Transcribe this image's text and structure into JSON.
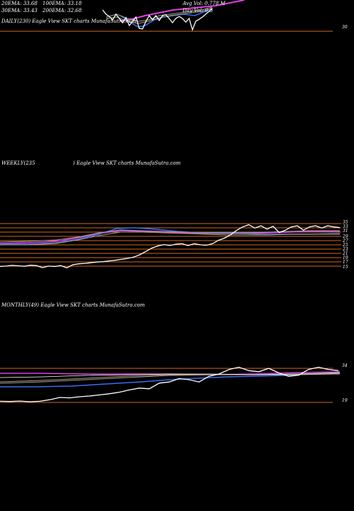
{
  "colors": {
    "background": "#000000",
    "price": "#ffffff",
    "hline": "#d2691e",
    "ema_blue": "#3a6cf0",
    "ema_magenta": "#e040e0",
    "ema_grey": "#a0a0a0",
    "ema_olive": "#b0a070"
  },
  "header": {
    "ema20": "20EMA: 33.68",
    "ema100": "100EMA: 33.18",
    "ema30": "30EMA: 33.43",
    "ema200": "200EMA: 32.68",
    "avg_vol": "Avg Vol: 0.778 M",
    "day_vol": "Day Vol: 0.3"
  },
  "chart_data": [
    {
      "type": "line",
      "title": "DAILY(230) Eagle  View  SKT charts MunafaSutra.com",
      "yticks": [
        "30"
      ],
      "series": [
        {
          "values": [
            37.5,
            36.0,
            35.2,
            34.0,
            36.0,
            34.5,
            33.0,
            34.8,
            32.0,
            33.5,
            35.0,
            31.0,
            30.8,
            33.5,
            35.5,
            34.0,
            35.5,
            33.8,
            35.5,
            35.8,
            34.5,
            33.0,
            34.5,
            35.2,
            34.5,
            33.2,
            34.5,
            30.5,
            33.5,
            34.2,
            35.0,
            36.0,
            37.0,
            38.0
          ]
        }
      ]
    },
    {
      "type": "line",
      "title": "WEEKLY(235",
      "subtitle": ") Eagle  View  SKT charts MunafaSutra.com",
      "yticks": [
        "35",
        "33",
        "31",
        "29",
        "27",
        "25",
        "23",
        "21",
        "19",
        "17",
        "15"
      ],
      "series": [
        {
          "values": [
            15.8,
            16.0,
            16.3,
            16.1,
            15.9,
            16.4,
            16.2,
            15.3,
            16.0,
            15.8,
            16.2,
            15.2,
            16.6,
            17.0,
            17.2,
            17.5,
            17.8,
            18.0,
            18.3,
            18.6,
            19.0,
            19.4,
            20.0,
            21.0,
            22.5,
            24.0,
            25.0,
            25.6,
            25.2,
            25.8,
            26.0,
            25.2,
            26.0,
            25.5,
            25.3,
            26.0,
            27.5,
            28.5,
            30.0,
            32.0,
            33.5,
            34.5,
            33.0,
            34.0,
            32.5,
            33.8,
            31.0,
            32.0,
            33.5,
            34.0,
            32.0,
            33.5,
            34.0,
            33.0,
            34.0,
            33.5,
            33.2
          ]
        }
      ]
    },
    {
      "type": "line",
      "title": "MONTHLY(49) Eagle  View  SKT charts MunafaSutra.com",
      "yticks": [
        "34",
        "19"
      ],
      "series": [
        {
          "values": [
            19.5,
            19.4,
            19.6,
            19.3,
            19.5,
            20.2,
            21.2,
            21.0,
            21.5,
            21.8,
            22.3,
            22.8,
            23.5,
            24.5,
            25.3,
            25.0,
            27.5,
            28.0,
            29.5,
            29.0,
            28.0,
            30.5,
            31.5,
            33.5,
            34.5,
            33.0,
            32.5,
            34.0,
            32.0,
            30.5,
            31.0,
            33.5,
            34.5,
            33.5,
            33.0
          ]
        }
      ]
    }
  ]
}
